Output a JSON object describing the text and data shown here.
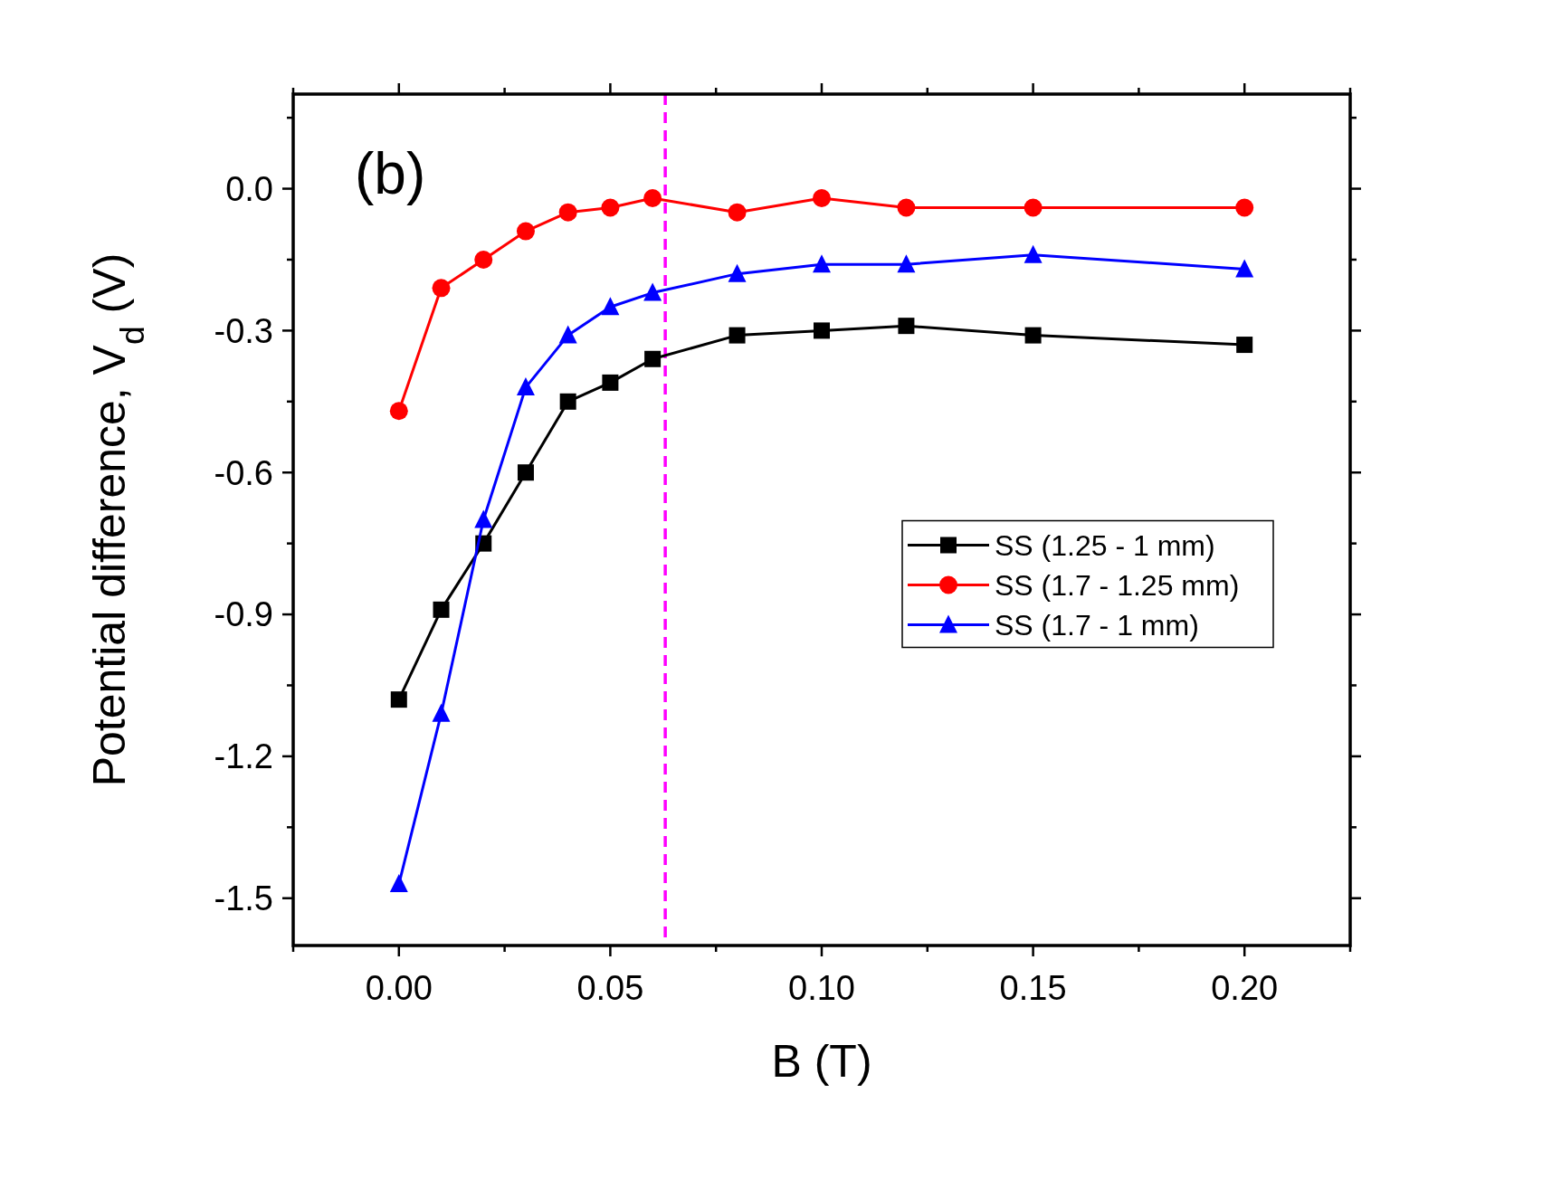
{
  "chart_data": {
    "type": "line",
    "xlabel": "B (T)",
    "ylabel": "Potential difference, V$_{d}$ (V)",
    "annotations": [
      "(b)"
    ],
    "x": [
      0,
      0.01,
      0.02,
      0.03,
      0.04,
      0.05,
      0.06,
      0.08,
      0.1,
      0.12,
      0.15,
      0.2
    ],
    "series": [
      {
        "name": "SS (1.25 - 1 mm)",
        "color": "#000000",
        "marker": "square",
        "values": [
          -1.08,
          -0.89,
          -0.75,
          -0.6,
          -0.45,
          -0.41,
          -0.36,
          -0.31,
          -0.3,
          -0.29,
          -0.31,
          -0.33
        ]
      },
      {
        "name": "SS (1.7 - 1.25 mm)",
        "color": "#ff0000",
        "marker": "circle",
        "values": [
          -0.47,
          -0.21,
          -0.15,
          -0.09,
          -0.05,
          -0.04,
          -0.02,
          -0.05,
          -0.02,
          -0.04,
          -0.04,
          -0.04
        ]
      },
      {
        "name": "SS (1.7 - 1 mm)",
        "color": "#0000ff",
        "marker": "triangle",
        "values": [
          -1.47,
          -1.11,
          -0.7,
          -0.42,
          -0.31,
          -0.25,
          -0.22,
          -0.18,
          -0.16,
          -0.16,
          -0.14,
          -0.17
        ]
      }
    ],
    "xlim": [
      -0.025,
      0.225
    ],
    "xticks": [
      {
        "value": -0.025,
        "label": null
      },
      {
        "value": 0,
        "label": "0.00"
      },
      {
        "value": 0.025,
        "label": null
      },
      {
        "value": 0.05,
        "label": "0.05"
      },
      {
        "value": 0.075,
        "label": null
      },
      {
        "value": 0.1,
        "label": "0.10"
      },
      {
        "value": 0.125,
        "label": null
      },
      {
        "value": 0.15,
        "label": "0.15"
      },
      {
        "value": 0.175,
        "label": null
      },
      {
        "value": 0.2,
        "label": "0.20"
      },
      {
        "value": 0.225,
        "label": null
      }
    ],
    "ylim": [
      -1.6,
      0.2
    ],
    "yticks": [
      {
        "value": -1.5,
        "label": "-1.5"
      },
      {
        "value": -1.35,
        "label": null
      },
      {
        "value": -1.2,
        "label": "-1.2"
      },
      {
        "value": -1.05,
        "label": null
      },
      {
        "value": -0.9,
        "label": "-0.9"
      },
      {
        "value": -0.75,
        "label": null
      },
      {
        "value": -0.6,
        "label": "-0.6"
      },
      {
        "value": -0.45,
        "label": null
      },
      {
        "value": -0.3,
        "label": "-0.3"
      },
      {
        "value": -0.15,
        "label": null
      },
      {
        "value": 0,
        "label": "0.0"
      },
      {
        "value": 0.15,
        "label": null
      }
    ],
    "ref_lines": [
      {
        "axis": "x",
        "value": 0.063,
        "color": "#ff00ff",
        "line_style": "dashed"
      }
    ],
    "legend": "right",
    "grid": false,
    "line_style": "solid"
  }
}
